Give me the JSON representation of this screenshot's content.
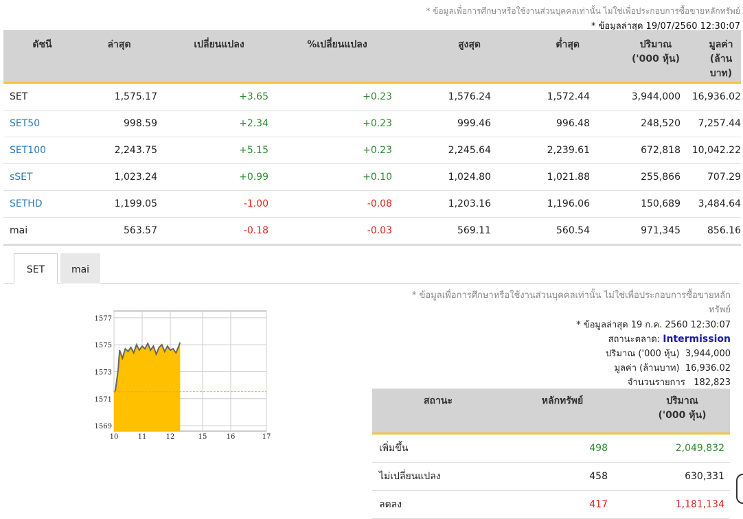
{
  "header": {
    "disclaimer": "* ข้อมูลเพื่อการศึกษาหรือใช้งานส่วนบุคคลเท่านั้น ไม่ใช่เพื่อประกอบการซื้อขายหลักทรัพย์",
    "updated": "* ข้อมูลล่าสุด 19/07/2560 12:30:07"
  },
  "index_table": {
    "columns": [
      "ดัชนี",
      "ล่าสุด",
      "เปลี่ยนแปลง",
      "%เปลี่ยนแปลง",
      "สูงสุด",
      "ต่ำสุด",
      "ปริมาณ",
      "มูลค่า"
    ],
    "column_sub": [
      "",
      "",
      "",
      "",
      "",
      "",
      "('000 หุ้น)",
      "(ล้านบาท)"
    ],
    "rows": [
      {
        "name": "SET",
        "last": "1,575.17",
        "chg": "+3.65",
        "pct": "+0.23",
        "high": "1,576.24",
        "low": "1,572.44",
        "vol": "3,944,000",
        "val": "16,936.02",
        "dir": "pos",
        "link": false
      },
      {
        "name": "SET50",
        "last": "998.59",
        "chg": "+2.34",
        "pct": "+0.23",
        "high": "999.46",
        "low": "996.48",
        "vol": "248,520",
        "val": "7,257.44",
        "dir": "pos",
        "link": true
      },
      {
        "name": "SET100",
        "last": "2,243.75",
        "chg": "+5.15",
        "pct": "+0.23",
        "high": "2,245.64",
        "low": "2,239.61",
        "vol": "672,818",
        "val": "10,042.22",
        "dir": "pos",
        "link": true
      },
      {
        "name": "sSET",
        "last": "1,023.24",
        "chg": "+0.99",
        "pct": "+0.10",
        "high": "1,024.80",
        "low": "1,021.88",
        "vol": "255,866",
        "val": "707.29",
        "dir": "pos",
        "link": true
      },
      {
        "name": "SETHD",
        "last": "1,199.05",
        "chg": "-1.00",
        "pct": "-0.08",
        "high": "1,203.16",
        "low": "1,196.06",
        "vol": "150,689",
        "val": "3,484.64",
        "dir": "neg",
        "link": true
      },
      {
        "name": "mai",
        "last": "563.57",
        "chg": "-0.18",
        "pct": "-0.03",
        "high": "569.11",
        "low": "560.54",
        "vol": "971,345",
        "val": "856.16",
        "dir": "neg",
        "link": false
      }
    ]
  },
  "tabs": [
    {
      "label": "SET",
      "active": true
    },
    {
      "label": "mai",
      "active": false
    }
  ],
  "chart_data": {
    "type": "area",
    "x_ticks": [
      "10",
      "11",
      "12",
      "15",
      "16",
      "17"
    ],
    "y_ticks": [
      "1577",
      "1575",
      "1573",
      "1571",
      "1569"
    ],
    "ylim": [
      1568.6,
      1577.5
    ],
    "prev_close": 1571.52,
    "fill_color": "#ffc000",
    "line_color": "#666666",
    "ref_line_color": "#f5a623",
    "series": {
      "x": [
        10.0,
        10.05,
        10.15,
        10.2,
        10.3,
        10.4,
        10.5,
        10.6,
        10.7,
        10.8,
        10.9,
        11.0,
        11.1,
        11.2,
        11.3,
        11.4,
        11.5,
        11.6,
        11.7,
        11.8,
        11.9,
        12.0,
        12.1,
        12.2,
        12.3,
        12.35
      ],
      "y": [
        1571.5,
        1571.6,
        1573.2,
        1574.6,
        1574.0,
        1574.7,
        1574.5,
        1574.8,
        1574.4,
        1575.0,
        1574.6,
        1574.9,
        1574.7,
        1575.1,
        1574.6,
        1574.9,
        1574.3,
        1574.8,
        1575.0,
        1574.5,
        1574.9,
        1574.6,
        1574.7,
        1574.4,
        1574.9,
        1575.17
      ]
    }
  },
  "market": {
    "disclaimer_line1": "* ข้อมูลเพื่อการศึกษาหรือใช้งานส่วนบุคคลเท่านั้น ไม่ใช่เพื่อประกอบการซื้อขายหลัก",
    "disclaimer_line2": "ทรัพย์",
    "updated": "* ข้อมูลล่าสุด 19 ก.ค. 2560 12:30:07",
    "status_label": "สถานะตลาด:",
    "status_value": "Intermission",
    "volume_label": "ปริมาณ ('000 หุ้น)",
    "volume_value": "3,944,000",
    "value_label": "มูลค่า (ล้านบาท)",
    "value_value": "16,936.02",
    "trades_label": "จำนวนรายการ",
    "trades_value": "182,823"
  },
  "summary_table": {
    "columns": [
      "สถานะ",
      "หลักทรัพย์",
      "ปริมาณ"
    ],
    "column_sub": [
      "",
      "",
      "('000 หุ้น)"
    ],
    "rows": [
      {
        "status": "เพิ่มขึ้น",
        "count": "498",
        "vol": "2,049,832",
        "dir": "pos"
      },
      {
        "status": "ไม่เปลี่ยนแปลง",
        "count": "458",
        "vol": "630,331",
        "dir": "none"
      },
      {
        "status": "ลดลง",
        "count": "417",
        "vol": "1,181,134",
        "dir": "neg"
      }
    ]
  }
}
